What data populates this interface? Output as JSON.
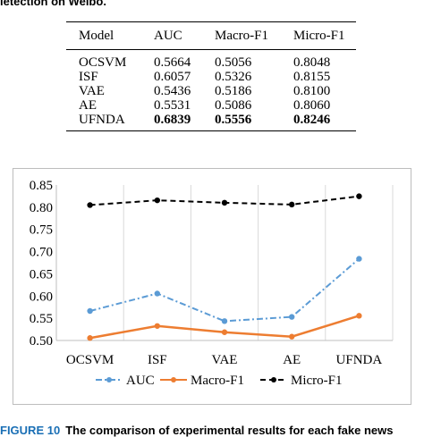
{
  "top_caption": "letection on Weibo.",
  "table": {
    "headers": [
      "Model",
      "AUC",
      "Macro-F1",
      "Micro-F1"
    ],
    "rows": [
      {
        "model": "OCSVM",
        "auc": "0.5664",
        "macro_f1": "0.5056",
        "micro_f1": "0.8048",
        "bold": false
      },
      {
        "model": "ISF",
        "auc": "0.6057",
        "macro_f1": "0.5326",
        "micro_f1": "0.8155",
        "bold": false
      },
      {
        "model": "VAE",
        "auc": "0.5436",
        "macro_f1": "0.5186",
        "micro_f1": "0.8100",
        "bold": false
      },
      {
        "model": "AE",
        "auc": "0.5531",
        "macro_f1": "0.5086",
        "micro_f1": "0.8060",
        "bold": false
      },
      {
        "model": "UFNDA",
        "auc": "0.6839",
        "macro_f1": "0.5556",
        "micro_f1": "0.8246",
        "bold": true
      }
    ]
  },
  "chart_data": {
    "type": "line",
    "categories": [
      "OCSVM",
      "ISF",
      "VAE",
      "AE",
      "UFNDA"
    ],
    "series": [
      {
        "name": "AUC",
        "values": [
          0.5664,
          0.6057,
          0.5436,
          0.5531,
          0.6839
        ],
        "color": "#5b9bd5",
        "style": "dash-dot",
        "marker": "circle"
      },
      {
        "name": "Macro-F1",
        "values": [
          0.5056,
          0.5326,
          0.5186,
          0.5086,
          0.5556
        ],
        "color": "#ed7d31",
        "style": "solid",
        "marker": "circle"
      },
      {
        "name": "Micro-F1",
        "values": [
          0.8048,
          0.8155,
          0.81,
          0.806,
          0.8246
        ],
        "color": "#000000",
        "style": "dashed",
        "marker": "circle"
      }
    ],
    "ylim": [
      0.5,
      0.85
    ],
    "yticks": [
      "0.50",
      "0.55",
      "0.60",
      "0.65",
      "0.70",
      "0.75",
      "0.80",
      "0.85"
    ],
    "grid": "vertical",
    "legend": "bottom"
  },
  "bottom_caption": {
    "figure_number": "FIGURE 10",
    "text": "The comparison of experimental results for each fake news"
  }
}
